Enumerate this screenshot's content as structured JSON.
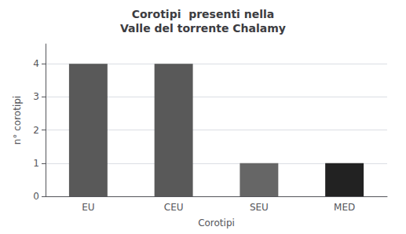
{
  "chart_data": {
    "type": "bar",
    "title": "Corotipi  presenti nella\nValle del torrente Chalamy",
    "xlabel": "Corotipi",
    "ylabel": "n° corotipi",
    "categories": [
      "EU",
      "CEU",
      "SEU",
      "MED"
    ],
    "values": [
      4,
      4,
      1,
      1
    ],
    "colors": [
      "#595959",
      "#595959",
      "#666666",
      "#222222"
    ],
    "ylim": [
      0,
      4.6
    ],
    "yticks": [
      0,
      1,
      2,
      3,
      4
    ],
    "grid": true
  }
}
